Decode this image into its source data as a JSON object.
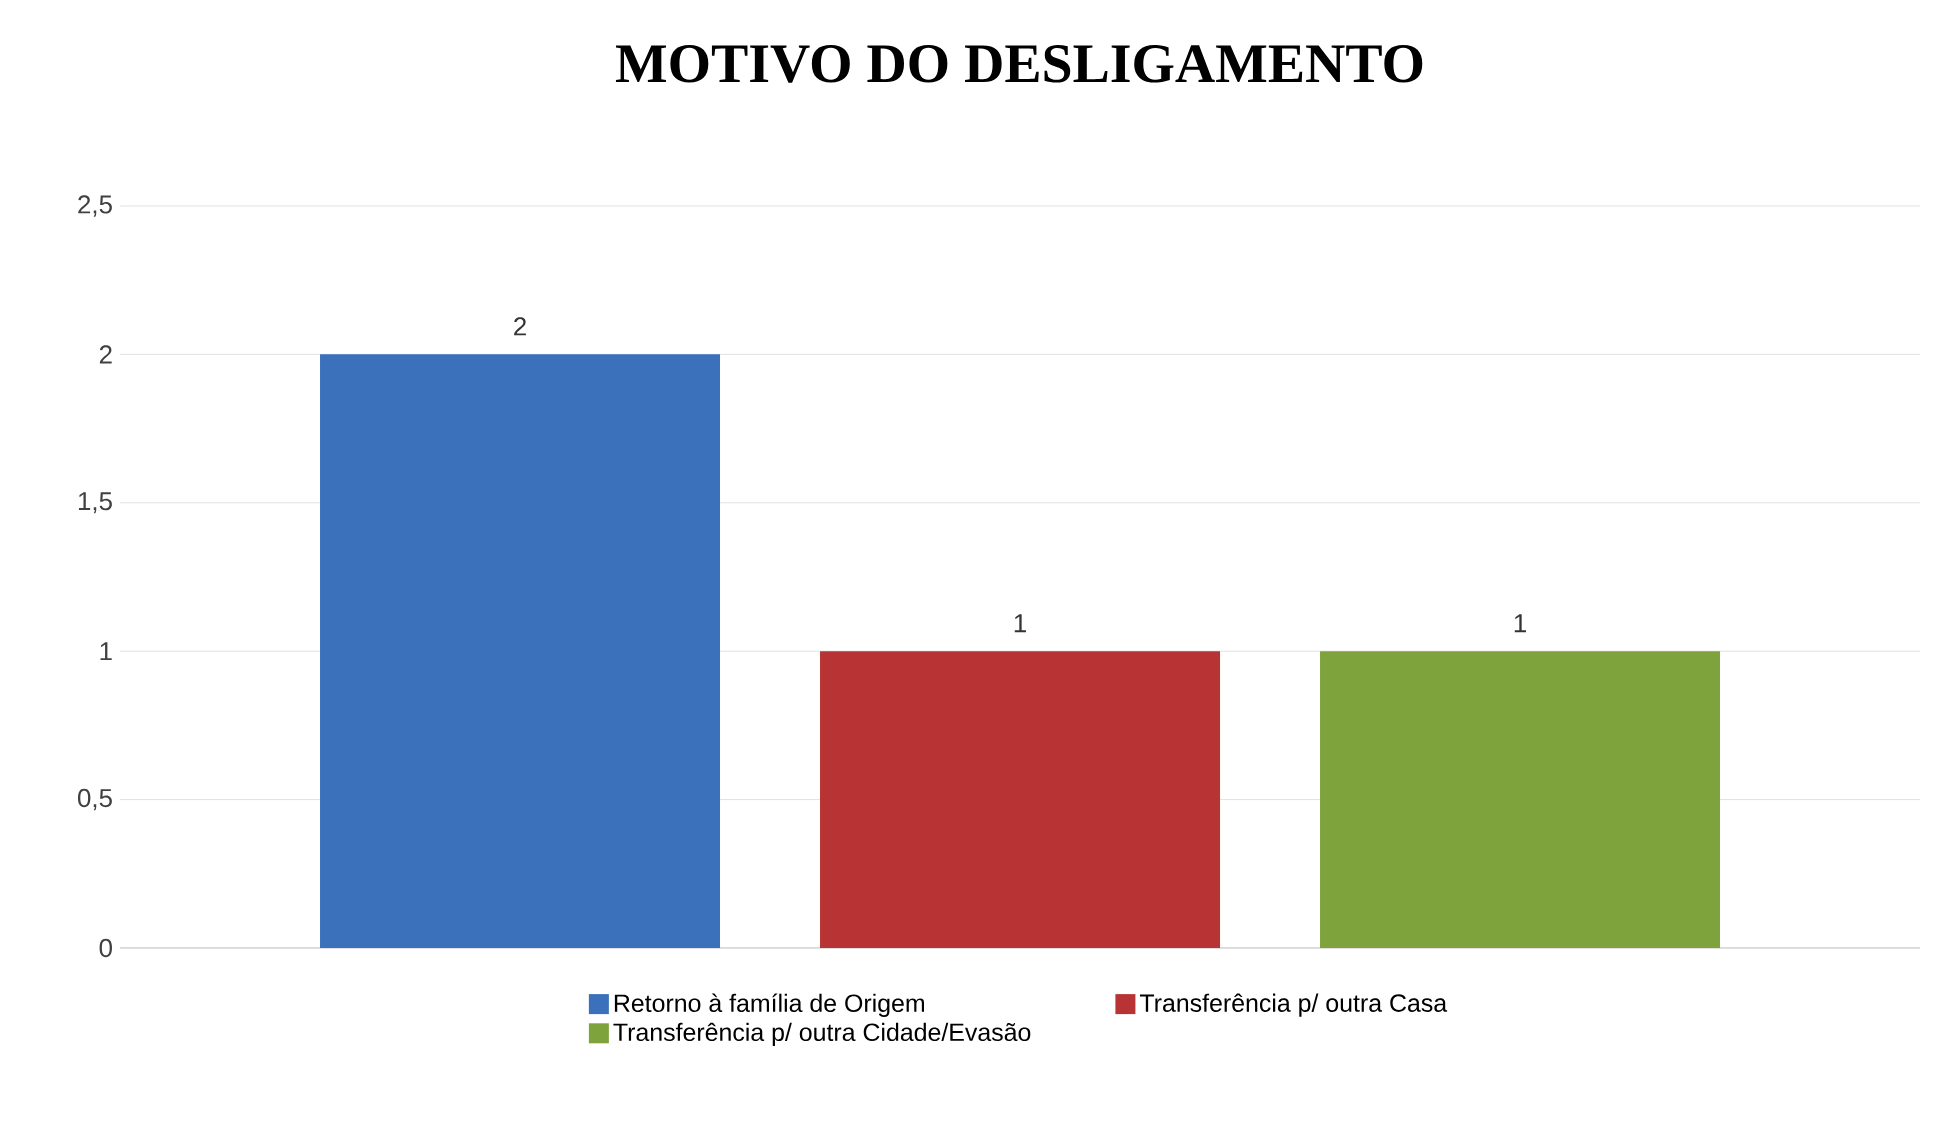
{
  "chart_data": {
    "type": "bar",
    "title": "MOTIVO DO DESLIGAMENTO",
    "categories": [
      null
    ],
    "series": [
      {
        "name": "Retorno à família de Origem",
        "color": "#3b70ba",
        "values": [
          2
        ]
      },
      {
        "name": "Transferência p/ outra Casa",
        "color": "#b83333",
        "values": [
          1
        ]
      },
      {
        "name": "Transferência p/ outra Cidade/Evasão",
        "color": "#7ea33c",
        "values": [
          1
        ]
      }
    ],
    "ylim": [
      0,
      2.5
    ],
    "yticks": [
      0,
      {
        "value": 0.5,
        "label": "0,5"
      },
      1,
      {
        "value": 1.5,
        "label": "1,5"
      },
      2,
      {
        "value": 2.5,
        "label": "2,5"
      }
    ],
    "grid": "y",
    "legend": "bottom",
    "data_labels": true
  }
}
